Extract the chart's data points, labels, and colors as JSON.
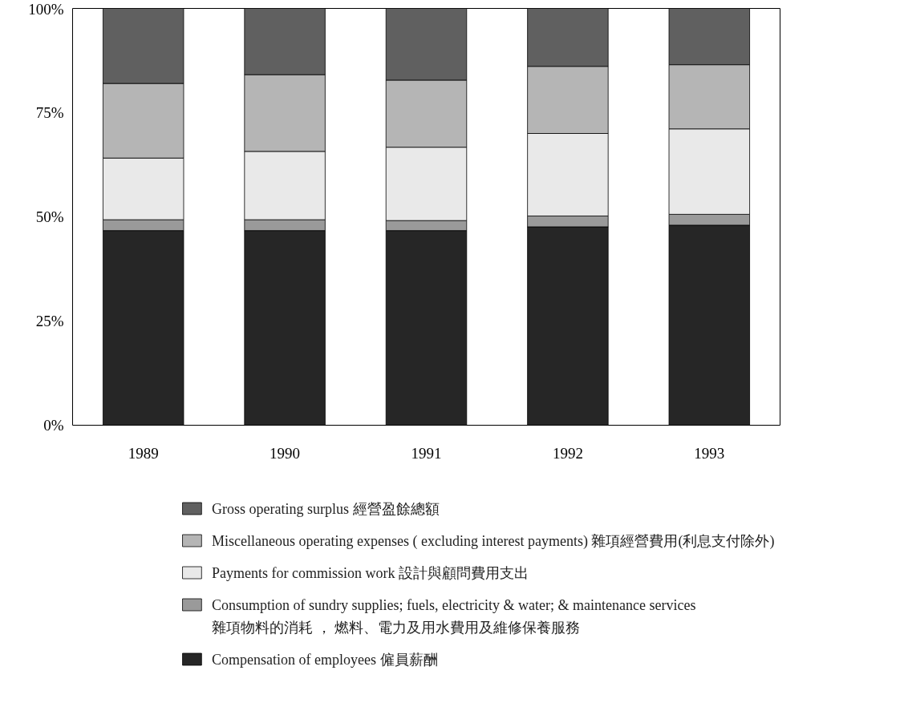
{
  "chart_data": {
    "type": "bar",
    "stacked": true,
    "categories": [
      "1989",
      "1990",
      "1991",
      "1992",
      "1993"
    ],
    "series": [
      {
        "name": "Compensation of employees 僱員薪酬",
        "color": "#262626",
        "values": [
          46.7,
          46.7,
          46.7,
          47.6,
          48.0
        ]
      },
      {
        "name": "Consumption of sundry supplies; fuels, electricity & water; & maintenance services\n雜項物料的消耗 ， 燃料、電力及用水費用及維修保養服務",
        "color": "#9a9a9a",
        "values": [
          2.6,
          2.6,
          2.4,
          2.6,
          2.6
        ]
      },
      {
        "name": "Payments for commission work 設計與顧問費用支出",
        "color": "#e9e9e9",
        "values": [
          14.8,
          16.4,
          17.6,
          19.8,
          20.5
        ]
      },
      {
        "name": "Miscellaneous operating expenses ( excluding interest payments) 雜項經營費用(利息支付除外)",
        "color": "#b5b5b5",
        "values": [
          17.9,
          18.4,
          16.1,
          16.1,
          15.4
        ]
      },
      {
        "name": "Gross operating surplus 經營盈餘總額",
        "color": "#606060",
        "values": [
          18.0,
          15.9,
          17.2,
          13.9,
          13.5
        ]
      }
    ],
    "ylim": [
      0,
      100
    ],
    "yticks": [
      {
        "value": 0,
        "label": "0%"
      },
      {
        "value": 25,
        "label": "25%"
      },
      {
        "value": 50,
        "label": "50%"
      },
      {
        "value": 75,
        "label": "75%"
      },
      {
        "value": 100,
        "label": "100%"
      }
    ],
    "grid": false,
    "legend": "bottom"
  }
}
